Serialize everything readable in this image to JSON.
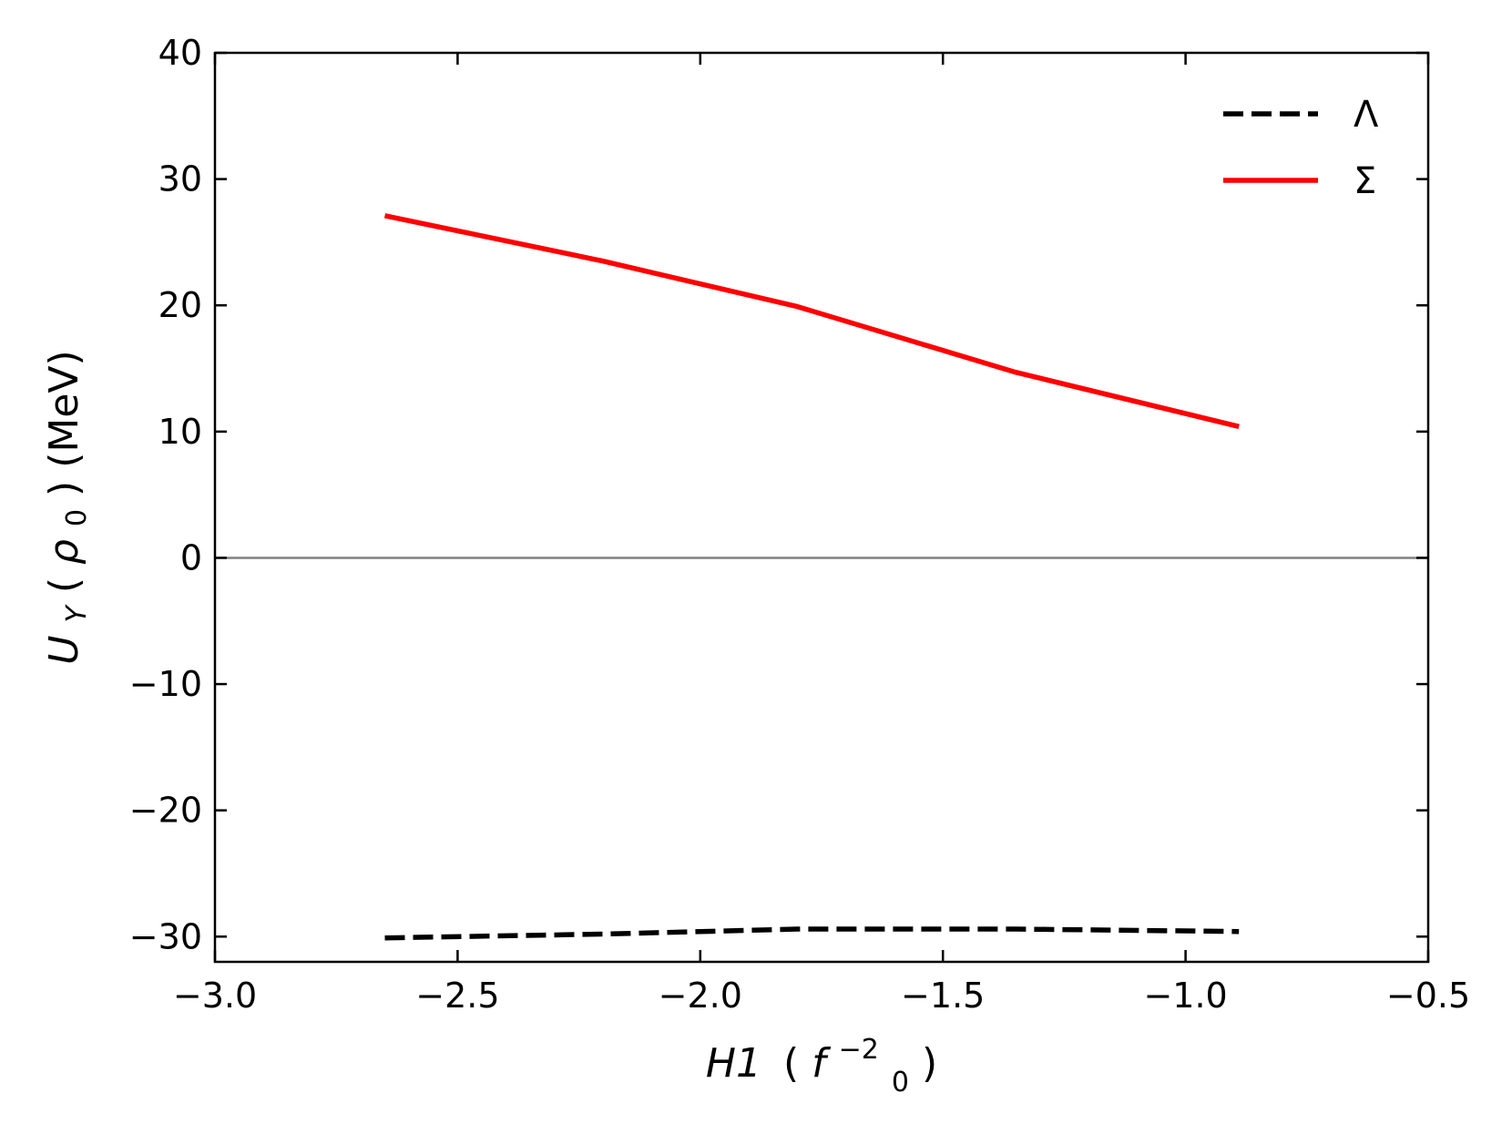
{
  "chart_data": {
    "type": "line",
    "title": "",
    "xlabel": {
      "main": "H1",
      "paren_open": "(",
      "paren_close": ")",
      "unit": "f",
      "unit_sub": "0",
      "unit_sup": "−2"
    },
    "ylabel": {
      "main": "U",
      "sub": "Y",
      "arg_open": "(",
      "arg": "ρ",
      "arg_sub": "0",
      "arg_close": ")",
      "unit": " (MeV)"
    },
    "xlim": [
      -3.0,
      -0.5
    ],
    "ylim": [
      -32,
      40
    ],
    "xticks": [
      -3.0,
      -2.5,
      -2.0,
      -1.5,
      -1.0,
      -0.5
    ],
    "xtick_labels": [
      "−3.0",
      "−2.5",
      "−2.0",
      "−1.5",
      "−1.0",
      "−0.5"
    ],
    "yticks": [
      -30,
      -20,
      -10,
      0,
      10,
      20,
      30,
      40
    ],
    "ytick_labels": [
      "−30",
      "−20",
      "−10",
      "0",
      "10",
      "20",
      "30",
      "40"
    ],
    "hline": {
      "y": 0,
      "color": "#808080"
    },
    "legend_position": "top-right",
    "series": [
      {
        "name": "Λ",
        "color": "#000000",
        "style": "dashed",
        "x": [
          -2.65,
          -2.2,
          -1.8,
          -1.35,
          -0.89
        ],
        "y": [
          -30.1,
          -29.8,
          -29.4,
          -29.4,
          -29.6
        ]
      },
      {
        "name": "Σ",
        "color": "#ff0000",
        "style": "solid",
        "x": [
          -2.65,
          -2.2,
          -1.8,
          -1.35,
          -0.89
        ],
        "y": [
          27.1,
          23.5,
          19.9,
          14.7,
          10.4
        ]
      }
    ]
  }
}
